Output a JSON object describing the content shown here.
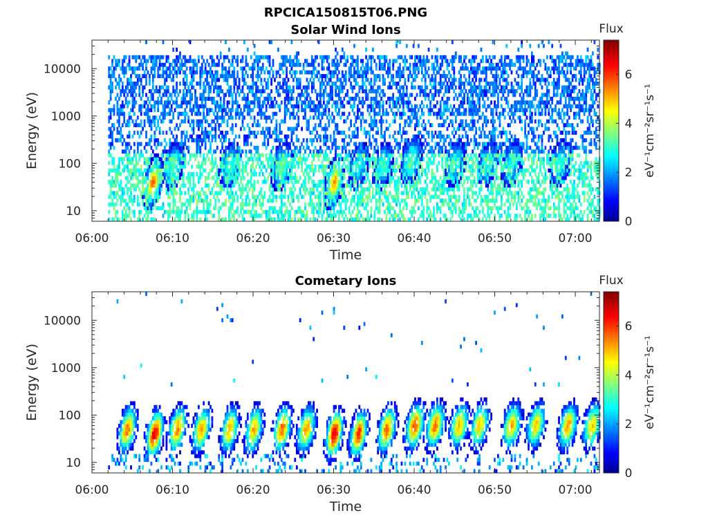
{
  "figure_title": "RPCICA150815T06.PNG",
  "chart_data": [
    {
      "type": "heatmap",
      "title": "Solar Wind Ions",
      "xlabel": "Time",
      "ylabel": "Energy (eV)",
      "x_ticks": [
        "06:00",
        "06:10",
        "06:20",
        "06:30",
        "06:40",
        "06:50",
        "07:00"
      ],
      "x_range": [
        "06:00",
        "07:03"
      ],
      "y_scale": "log",
      "y_ticks": [
        "10",
        "100",
        "1000",
        "10000"
      ],
      "y_range": [
        6,
        40000
      ],
      "data_start": "06:02",
      "colorbar": {
        "title": "Flux",
        "label": "eV⁻¹cm⁻²sr⁻¹s⁻¹",
        "ticks": [
          "0",
          "2",
          "4",
          "6"
        ],
        "range": [
          0,
          7.4
        ]
      },
      "features": {
        "background_level": 1.2,
        "low_energy_level": 2.6,
        "bursts": [
          {
            "t": "06:07.5",
            "e": 40,
            "level": 5.6
          },
          {
            "t": "06:10",
            "e": 90,
            "level": 3.4
          },
          {
            "t": "06:17",
            "e": 90,
            "level": 3.2
          },
          {
            "t": "06:23.5",
            "e": 90,
            "level": 3.6
          },
          {
            "t": "06:30",
            "e": 40,
            "level": 5.4
          },
          {
            "t": "06:33",
            "e": 90,
            "level": 3.0
          },
          {
            "t": "06:36",
            "e": 90,
            "level": 3.2
          },
          {
            "t": "06:39.5",
            "e": 120,
            "level": 3.4
          },
          {
            "t": "06:45",
            "e": 100,
            "level": 3.0
          },
          {
            "t": "06:49",
            "e": 100,
            "level": 3.0
          },
          {
            "t": "06:52",
            "e": 100,
            "level": 3.0
          },
          {
            "t": "06:58",
            "e": 100,
            "level": 3.0
          }
        ]
      }
    },
    {
      "type": "heatmap",
      "title": "Cometary Ions",
      "xlabel": "Time",
      "ylabel": "Energy (eV)",
      "x_ticks": [
        "06:00",
        "06:10",
        "06:20",
        "06:30",
        "06:40",
        "06:50",
        "07:00"
      ],
      "x_range": [
        "06:00",
        "07:03"
      ],
      "y_scale": "log",
      "y_ticks": [
        "10",
        "100",
        "1000",
        "10000"
      ],
      "y_range": [
        6,
        40000
      ],
      "data_start": "06:02",
      "colorbar": {
        "title": "Flux",
        "label": "eV⁻¹cm⁻²sr⁻¹s⁻¹",
        "ticks": [
          "0",
          "2",
          "4",
          "6"
        ],
        "range": [
          0,
          7.4
        ]
      },
      "features": {
        "background_level": 1.0,
        "bursts": [
          {
            "t": "06:04.3",
            "e": 50,
            "level": 5.6
          },
          {
            "t": "06:07.7",
            "e": 40,
            "level": 6.8
          },
          {
            "t": "06:10.5",
            "e": 50,
            "level": 5.6
          },
          {
            "t": "06:13.5",
            "e": 50,
            "level": 5.4
          },
          {
            "t": "06:17",
            "e": 50,
            "level": 5.2
          },
          {
            "t": "06:20",
            "e": 50,
            "level": 5.2
          },
          {
            "t": "06:23.5",
            "e": 50,
            "level": 5.8
          },
          {
            "t": "06:26.5",
            "e": 50,
            "level": 5.4
          },
          {
            "t": "06:30",
            "e": 40,
            "level": 6.9
          },
          {
            "t": "06:33",
            "e": 40,
            "level": 6.2
          },
          {
            "t": "06:36.5",
            "e": 50,
            "level": 5.8
          },
          {
            "t": "06:40",
            "e": 60,
            "level": 6.0
          },
          {
            "t": "06:42.5",
            "e": 60,
            "level": 5.6
          },
          {
            "t": "06:45.5",
            "e": 60,
            "level": 5.2
          },
          {
            "t": "06:48",
            "e": 60,
            "level": 5.0
          },
          {
            "t": "06:52",
            "e": 60,
            "level": 5.2
          },
          {
            "t": "06:55",
            "e": 60,
            "level": 5.0
          },
          {
            "t": "06:59",
            "e": 60,
            "level": 5.4
          },
          {
            "t": "07:02",
            "e": 60,
            "level": 5.0
          }
        ]
      }
    }
  ]
}
